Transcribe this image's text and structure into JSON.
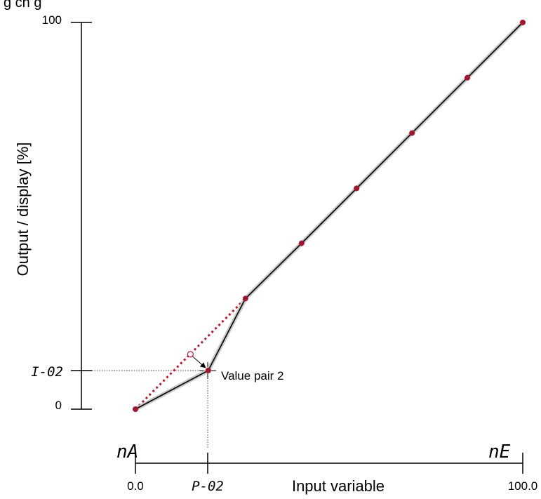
{
  "header_text": "g ch    g",
  "y_axis": {
    "label": "Output / display [%]",
    "tick_top": "100",
    "tick_bottom": "0",
    "tick_i02": "I-02"
  },
  "x_axis": {
    "label": "Input variable",
    "tick_start": "0.0",
    "tick_end": "100.0",
    "tick_p02": "P-02",
    "seg_start": "nA",
    "seg_end": "nE"
  },
  "annotation": "Value pair 2",
  "colors": {
    "line": "#000000",
    "halo": "#c8c8c8",
    "point": "#a0182e",
    "dotted": "#b01c2e"
  },
  "chart_data": {
    "type": "line",
    "title": "",
    "xlabel": "Input variable",
    "ylabel": "Output / display [%]",
    "xlim": [
      0,
      100
    ],
    "ylim": [
      0,
      100
    ],
    "series": [
      {
        "name": "",
        "x": [
          0,
          18.8,
          28.4,
          42.9,
          57.1,
          71.4,
          85.7,
          100
        ],
        "y": [
          0,
          10,
          28.6,
          42.9,
          57.1,
          71.4,
          85.7,
          100
        ]
      }
    ],
    "linear_reference_point": {
      "x": 14.2,
      "y": 14.2
    }
  }
}
